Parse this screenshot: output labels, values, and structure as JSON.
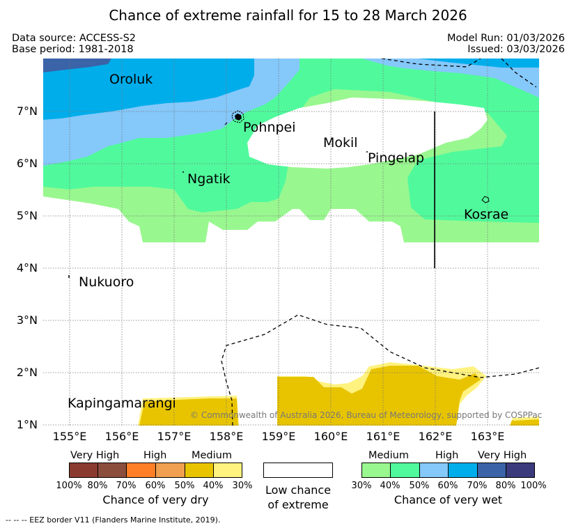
{
  "title": "Chance of extreme rainfall for 15 to 28 March 2026",
  "data_source": "Data source: ACCESS-S2",
  "base_period": "Base period: 1981-2018",
  "model_run": "Model Run: 01/03/2026",
  "issued": "Issued: 03/03/2026",
  "copyright": "© Commonwealth of Australia 2026, Bureau of Meteorology, supported by COSPPac",
  "footer": "--  --  -- EEZ border V11 (Flanders Marine Institute, 2019).",
  "map": {
    "lat_labels": [
      "7°N",
      "6°N",
      "5°N",
      "4°N",
      "3°N",
      "2°N",
      "1°N"
    ],
    "lon_labels": [
      "155°E",
      "156°E",
      "157°E",
      "158°E",
      "159°E",
      "160°E",
      "161°E",
      "162°E",
      "163°E"
    ],
    "places": {
      "oroluk": "Oroluk",
      "pohnpei": "Pohnpei",
      "mokil": "Mokil",
      "pingelap": "Pingelap",
      "ngatik": "Ngatik",
      "kosrae": "Kosrae",
      "nukuoro": "Nukuoro",
      "kapingamarangi": "Kapingamarangi"
    }
  },
  "legend": {
    "dry": {
      "categories": [
        "Very High",
        "High",
        "Medium"
      ],
      "percents": [
        "100%",
        "80%",
        "70%",
        "60%",
        "50%",
        "40%",
        "30%"
      ],
      "colors": [
        "#8b3a2f",
        "#8c4e3c",
        "#ff7f27",
        "#f0a050",
        "#e8c400",
        "#fff27f"
      ],
      "title": "Chance of very dry"
    },
    "low": {
      "label_line1": "Low chance",
      "label_line2": "of extreme",
      "color": "#ffffff"
    },
    "wet": {
      "categories": [
        "Medium",
        "High",
        "Very High"
      ],
      "percents": [
        "30%",
        "40%",
        "50%",
        "60%",
        "70%",
        "80%",
        "100%"
      ],
      "colors": [
        "#99f78f",
        "#50fa9c",
        "#85c8fa",
        "#00adeb",
        "#3a63a8",
        "#3b3a7c"
      ],
      "title": "Chance of very wet"
    }
  }
}
